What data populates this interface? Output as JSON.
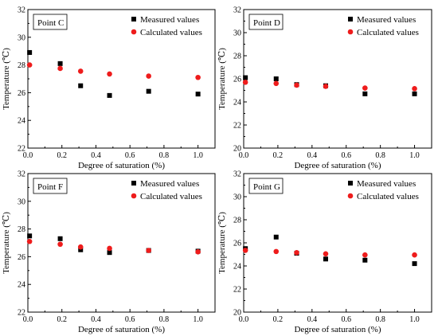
{
  "chart_data": [
    {
      "type": "scatter",
      "panel": "Point C",
      "xlabel": "Degree of saturation (%)",
      "ylabel": "Temperature (℃)",
      "xlim": [
        0,
        1.1
      ],
      "ylim": [
        22,
        32
      ],
      "xticks": [
        0.0,
        0.2,
        0.4,
        0.6,
        0.8,
        1.0
      ],
      "xtick_labels": [
        "0.0",
        "0.2",
        "0.4",
        "0.6",
        "0.8",
        "1.0"
      ],
      "yticks": [
        22,
        24,
        26,
        28,
        30,
        32
      ],
      "ytick_labels": [
        "22",
        "24",
        "26",
        "28",
        "30",
        "32"
      ],
      "legend_position": "top-right",
      "series": [
        {
          "name": "Measured values",
          "marker": "square",
          "color": "#000000",
          "x": [
            0.01,
            0.19,
            0.31,
            0.48,
            0.71,
            1.0
          ],
          "y": [
            28.9,
            28.1,
            26.5,
            25.8,
            26.1,
            25.9
          ]
        },
        {
          "name": "Calculated values",
          "marker": "circle",
          "color": "#ee1c1c",
          "x": [
            0.01,
            0.19,
            0.31,
            0.48,
            0.71,
            1.0
          ],
          "y": [
            28.0,
            27.75,
            27.55,
            27.35,
            27.2,
            27.1
          ]
        }
      ]
    },
    {
      "type": "scatter",
      "panel": "Point D",
      "xlabel": "Degree of saturation (%)",
      "ylabel": "Temperature (℃)",
      "xlim": [
        0,
        1.1
      ],
      "ylim": [
        20,
        32
      ],
      "xticks": [
        0.0,
        0.2,
        0.4,
        0.6,
        0.8,
        1.0
      ],
      "xtick_labels": [
        "0.0",
        "0.2",
        "0.4",
        "0.6",
        "0.8",
        "1.0"
      ],
      "yticks": [
        20,
        22,
        24,
        26,
        28,
        30,
        32
      ],
      "ytick_labels": [
        "20",
        "22",
        "24",
        "26",
        "28",
        "30",
        "32"
      ],
      "legend_position": "top-right",
      "series": [
        {
          "name": "Measured values",
          "marker": "square",
          "color": "#000000",
          "x": [
            0.01,
            0.19,
            0.31,
            0.48,
            0.71,
            1.0
          ],
          "y": [
            26.1,
            26.0,
            25.5,
            25.4,
            24.7,
            24.7
          ]
        },
        {
          "name": "Calculated values",
          "marker": "circle",
          "color": "#ee1c1c",
          "x": [
            0.01,
            0.19,
            0.31,
            0.48,
            0.71,
            1.0
          ],
          "y": [
            25.7,
            25.6,
            25.45,
            25.35,
            25.2,
            25.15
          ]
        }
      ]
    },
    {
      "type": "scatter",
      "panel": "Point F",
      "xlabel": "Degree of saturation (%)",
      "ylabel": "Temperature (℃)",
      "xlim": [
        0,
        1.1
      ],
      "ylim": [
        22,
        32
      ],
      "xticks": [
        0.0,
        0.2,
        0.4,
        0.6,
        0.8,
        1.0
      ],
      "xtick_labels": [
        "0.0",
        "0.2",
        "0.4",
        "0.6",
        "0.8",
        "1.0"
      ],
      "yticks": [
        22,
        24,
        26,
        28,
        30,
        32
      ],
      "ytick_labels": [
        "22",
        "24",
        "26",
        "28",
        "30",
        "32"
      ],
      "legend_position": "top-right",
      "series": [
        {
          "name": "Measured values",
          "marker": "square",
          "color": "#000000",
          "x": [
            0.01,
            0.19,
            0.31,
            0.48,
            0.71,
            1.0
          ],
          "y": [
            27.5,
            27.3,
            26.5,
            26.3,
            26.45,
            26.4
          ]
        },
        {
          "name": "Calculated values",
          "marker": "circle",
          "color": "#ee1c1c",
          "x": [
            0.01,
            0.19,
            0.31,
            0.48,
            0.71,
            1.0
          ],
          "y": [
            27.1,
            26.9,
            26.7,
            26.6,
            26.45,
            26.35
          ]
        }
      ]
    },
    {
      "type": "scatter",
      "panel": "Point G",
      "xlabel": "Degree of saturation (%)",
      "ylabel": "Temperature (℃)",
      "xlim": [
        0,
        1.1
      ],
      "ylim": [
        20,
        32
      ],
      "xticks": [
        0.0,
        0.2,
        0.4,
        0.6,
        0.8,
        1.0
      ],
      "xtick_labels": [
        "0.0",
        "0.2",
        "0.4",
        "0.6",
        "0.8",
        "1.0"
      ],
      "yticks": [
        20,
        22,
        24,
        26,
        28,
        30,
        32
      ],
      "ytick_labels": [
        "20",
        "22",
        "24",
        "26",
        "28",
        "30",
        "32"
      ],
      "legend_position": "top-right",
      "series": [
        {
          "name": "Measured values",
          "marker": "square",
          "color": "#000000",
          "x": [
            0.01,
            0.19,
            0.31,
            0.48,
            0.71,
            1.0
          ],
          "y": [
            25.5,
            26.5,
            25.1,
            24.6,
            24.5,
            24.2
          ]
        },
        {
          "name": "Calculated values",
          "marker": "circle",
          "color": "#ee1c1c",
          "x": [
            0.01,
            0.19,
            0.31,
            0.48,
            0.71,
            1.0
          ],
          "y": [
            25.35,
            25.25,
            25.15,
            25.05,
            24.95,
            24.95
          ]
        }
      ]
    }
  ]
}
